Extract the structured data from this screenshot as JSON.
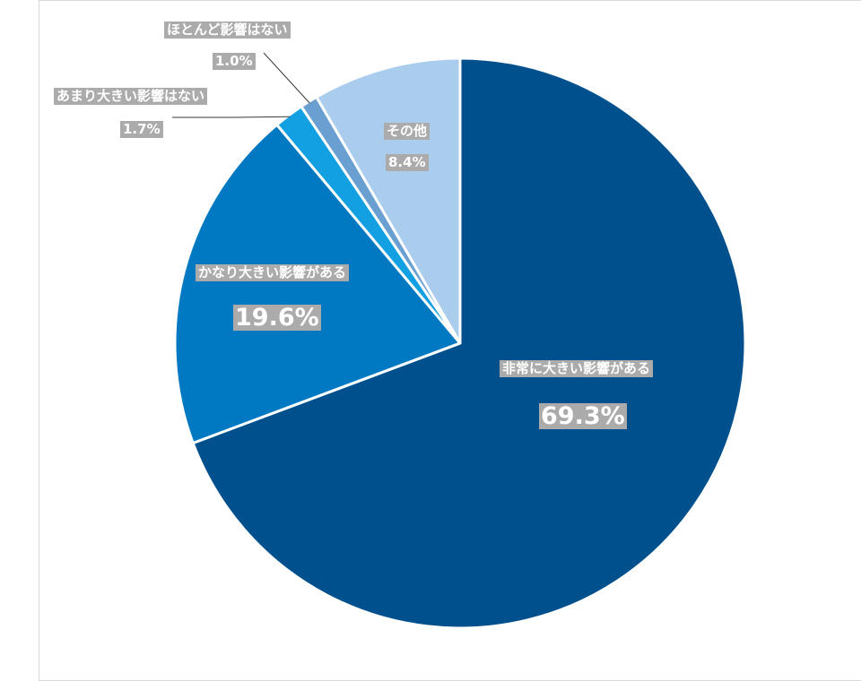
{
  "chart_data": {
    "type": "pie",
    "slices": [
      {
        "name": "非常に大きい影響がある",
        "value": 69.3,
        "label": "69.3%",
        "color": "#00508e"
      },
      {
        "name": "かなり大きい影響がある",
        "value": 19.6,
        "label": "19.6%",
        "color": "#0179c2"
      },
      {
        "name": "あまり大きい影響はない",
        "value": 1.7,
        "label": "1.7%",
        "color": "#13a0e2"
      },
      {
        "name": "ほとんど影響はない",
        "value": 1.0,
        "label": "1.0%",
        "color": "#6a9fd2"
      },
      {
        "name": "その他",
        "value": 8.4,
        "label": "8.4%",
        "color": "#aacdee"
      }
    ],
    "start_angle": "12 o'clock",
    "direction": "clockwise",
    "legend": "none",
    "title": ""
  }
}
